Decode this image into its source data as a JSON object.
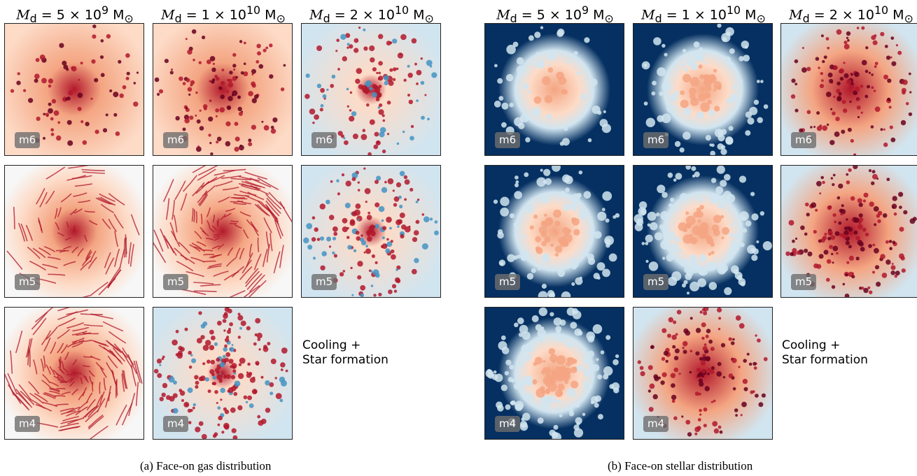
{
  "figure": {
    "left": {
      "columns": [
        {
          "pre": "M",
          "sub": "d",
          "value": " = 5 × 10",
          "exp": "9",
          "unit": " M",
          "usub": "⊙"
        },
        {
          "pre": "M",
          "sub": "d",
          "value": " = 1 × 10",
          "exp": "10",
          "unit": " M",
          "usub": "⊙"
        },
        {
          "pre": "M",
          "sub": "d",
          "value": " = 2 × 10",
          "exp": "10",
          "unit": " M",
          "usub": "⊙"
        }
      ],
      "caption": "(a) Face-on gas distribution"
    },
    "right": {
      "columns": [
        {
          "pre": "M",
          "sub": "d",
          "value": " = 5 × 10",
          "exp": "9",
          "unit": " M",
          "usub": "⊙"
        },
        {
          "pre": "M",
          "sub": "d",
          "value": " = 1 × 10",
          "exp": "10",
          "unit": " M",
          "usub": "⊙"
        },
        {
          "pre": "M",
          "sub": "d",
          "value": " = 2 × 10",
          "exp": "10",
          "unit": " M",
          "usub": "⊙"
        }
      ],
      "caption": "(b) Face-on stellar distribution"
    },
    "rows": [
      "m6",
      "m5",
      "m4"
    ],
    "side_label_line1": "Cooling +",
    "side_label_line2": "Star formation",
    "colors": {
      "dark_red": "#67001f",
      "red": "#b2182b",
      "salmon": "#f4a582",
      "pale": "#fddbc7",
      "white": "#f7f7f7",
      "light_blue": "#d1e5f0",
      "blue": "#4393c3",
      "navy": "#053061"
    }
  }
}
